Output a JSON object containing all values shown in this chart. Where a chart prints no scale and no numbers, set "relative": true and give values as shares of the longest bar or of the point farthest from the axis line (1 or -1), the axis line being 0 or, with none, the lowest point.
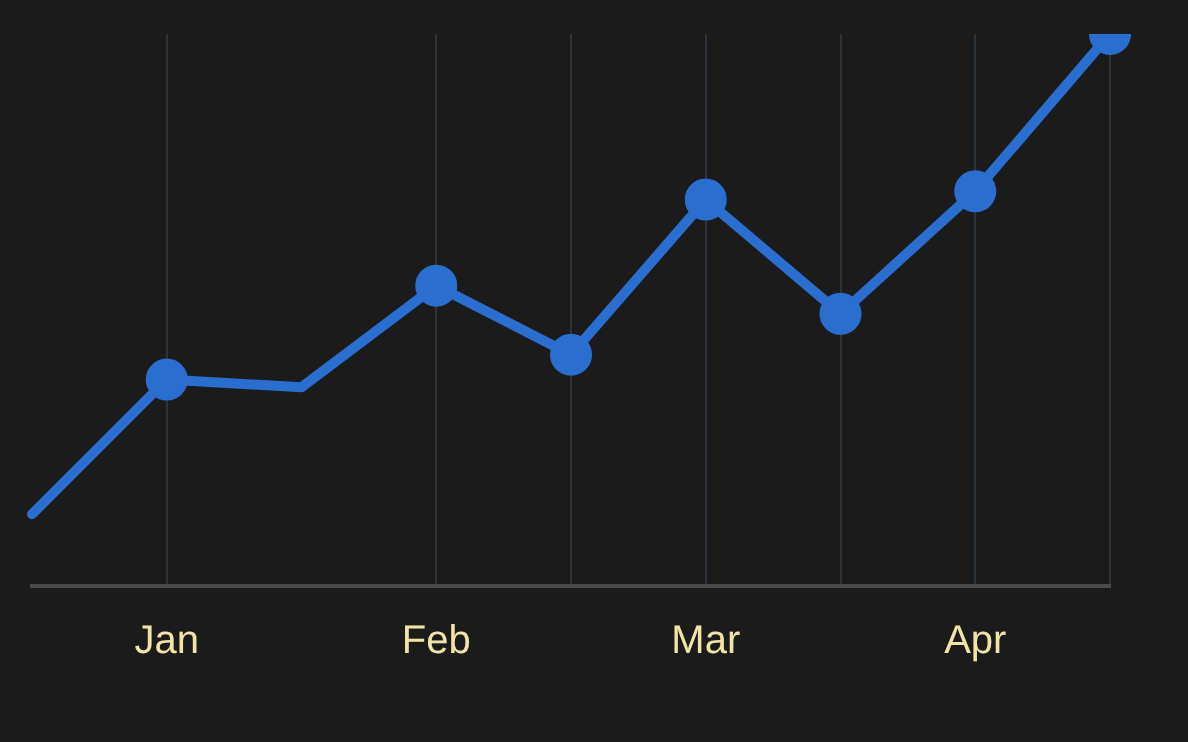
{
  "chart_data": {
    "type": "line",
    "relative": true,
    "categories": [
      null,
      "Jan",
      null,
      "Feb",
      null,
      "Mar",
      null,
      "Apr",
      null
    ],
    "grid": "x",
    "tick_labels": "x",
    "line_style": "solid",
    "series": [
      {
        "color": "#2a6fd0",
        "marker": "none",
        "values": [
          0.13,
          0.374,
          0.36,
          0.544,
          0.419,
          0.7,
          0.493,
          0.715,
          1
        ]
      },
      {
        "type": "scatter",
        "color": "#2a6fd0",
        "marker": "circle",
        "values": [
          null,
          0.374,
          null,
          0.544,
          0.419,
          0.7,
          0.493,
          0.715,
          1
        ]
      }
    ]
  }
}
